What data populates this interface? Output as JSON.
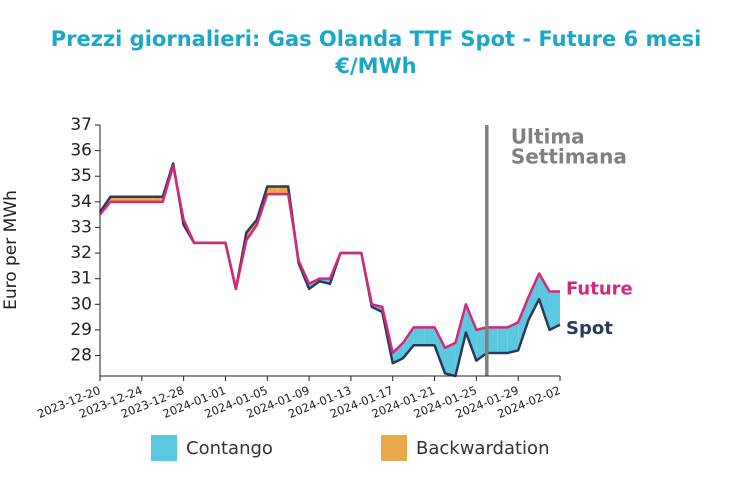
{
  "chart_data": {
    "type": "line",
    "title": [
      "Prezzi giornalieri: Gas Olanda TTF Spot - Future 6 mesi",
      "€/MWh"
    ],
    "y_label": "Euro per MWh",
    "x": [
      "2023-12-20",
      "2023-12-21",
      "2023-12-22",
      "2023-12-23",
      "2023-12-24",
      "2023-12-25",
      "2023-12-26",
      "2023-12-27",
      "2023-12-28",
      "2023-12-29",
      "2023-12-30",
      "2023-12-31",
      "2024-01-01",
      "2024-01-02",
      "2024-01-03",
      "2024-01-04",
      "2024-01-05",
      "2024-01-06",
      "2024-01-07",
      "2024-01-08",
      "2024-01-09",
      "2024-01-10",
      "2024-01-11",
      "2024-01-12",
      "2024-01-13",
      "2024-01-14",
      "2024-01-15",
      "2024-01-16",
      "2024-01-17",
      "2024-01-18",
      "2024-01-19",
      "2024-01-20",
      "2024-01-21",
      "2024-01-22",
      "2024-01-23",
      "2024-01-24",
      "2024-01-25",
      "2024-01-26",
      "2024-01-27",
      "2024-01-28",
      "2024-01-29",
      "2024-01-30",
      "2024-01-31",
      "2024-02-01",
      "2024-02-02"
    ],
    "series": [
      {
        "name": "Spot",
        "color": "#2b3a5c",
        "values": [
          33.6,
          34.2,
          34.2,
          34.2,
          34.2,
          34.2,
          34.2,
          35.5,
          33.1,
          32.4,
          32.4,
          32.4,
          32.4,
          30.6,
          32.8,
          33.3,
          34.6,
          34.6,
          34.6,
          31.6,
          30.6,
          30.9,
          30.8,
          32.0,
          32.0,
          32.0,
          29.9,
          29.7,
          27.7,
          27.9,
          28.4,
          28.4,
          28.4,
          27.3,
          27.2,
          28.9,
          27.8,
          28.1,
          28.1,
          28.1,
          28.2,
          29.4,
          30.2,
          29.0,
          29.2
        ]
      },
      {
        "name": "Future",
        "color": "#d6287a",
        "values": [
          33.5,
          34.0,
          34.0,
          34.0,
          34.0,
          34.0,
          34.0,
          35.4,
          33.3,
          32.4,
          32.4,
          32.4,
          32.4,
          30.6,
          32.5,
          33.1,
          34.3,
          34.3,
          34.3,
          31.7,
          30.8,
          31.0,
          31.0,
          32.0,
          32.0,
          32.0,
          30.0,
          29.9,
          28.1,
          28.5,
          29.1,
          29.1,
          29.1,
          28.3,
          28.5,
          30.0,
          29.0,
          29.1,
          29.1,
          29.1,
          29.3,
          30.3,
          31.2,
          30.5,
          30.5
        ]
      }
    ],
    "fills": [
      {
        "name": "Contango",
        "color": "#5bc8e0"
      },
      {
        "name": "Backwardation",
        "color": "#e8a94a"
      }
    ],
    "vline": {
      "x": "2024-01-26",
      "label": [
        "Ultima",
        "Settimana"
      ],
      "color": "#808080"
    },
    "xlim": [
      "2023-12-20",
      "2024-02-02"
    ],
    "xticks": [
      "2023-12-20",
      "2023-12-24",
      "2023-12-28",
      "2024-01-01",
      "2024-01-05",
      "2024-01-09",
      "2024-01-13",
      "2024-01-17",
      "2024-01-21",
      "2024-01-25",
      "2024-01-29",
      "2024-02-02"
    ],
    "ylim": [
      27.2,
      37
    ],
    "yticks": [
      28,
      29,
      30,
      31,
      32,
      33,
      34,
      35,
      36,
      37
    ],
    "grid": false
  }
}
